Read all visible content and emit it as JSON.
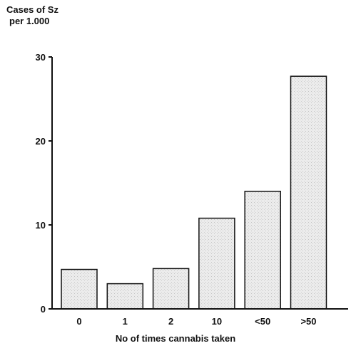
{
  "chart_data": {
    "type": "bar",
    "categories": [
      "0",
      "1",
      "2",
      "10",
      "<50",
      ">50"
    ],
    "values": [
      4.7,
      3.0,
      4.8,
      10.8,
      14.0,
      27.7
    ],
    "ylabel_lines": [
      "Cases of Sz",
      "per 1.000"
    ],
    "xlabel": "No of times cannabis taken",
    "ylim": [
      0,
      30
    ],
    "yticks": [
      0,
      10,
      20,
      30
    ],
    "grid": false,
    "colors": {
      "bar_fill": "#e4e4e4",
      "bar_stroke": "#111111",
      "axis": "#111111"
    }
  }
}
